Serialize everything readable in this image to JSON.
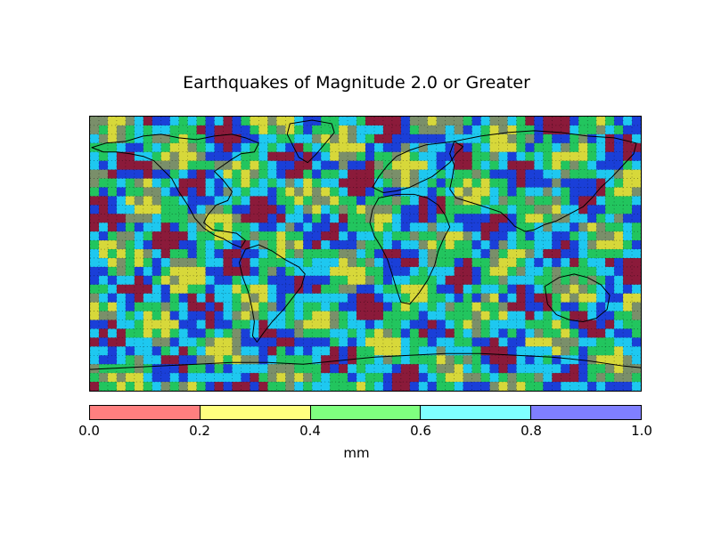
{
  "chart_data": {
    "type": "heatmap",
    "title": "Earthquakes of Magnitude 2.0 or Greater",
    "projection": "cylindrical-equidistant",
    "extent_lon": [
      -180,
      180
    ],
    "extent_lat": [
      -90,
      90
    ],
    "grid": "dotted",
    "colorbar": {
      "label": "mm",
      "orientation": "horizontal",
      "placement": "bottom",
      "range": [
        0,
        1
      ],
      "ticks": [
        "0.0",
        "0.2",
        "0.4",
        "0.6",
        "0.8",
        "1.0"
      ],
      "bins": [
        {
          "min": 0.0,
          "max": 0.2,
          "color": "#ff7f7f"
        },
        {
          "min": 0.2,
          "max": 0.4,
          "color": "#ffff7f"
        },
        {
          "min": 0.4,
          "max": 0.6,
          "color": "#7fff7f"
        },
        {
          "min": 0.6,
          "max": 0.8,
          "color": "#7fffff"
        },
        {
          "min": 0.8,
          "max": 1.0,
          "color": "#7f7fff"
        }
      ]
    },
    "field_colors": [
      "#8b1a3a",
      "#d7d83a",
      "#22c55e",
      "#1ec8f0",
      "#1a3fd8",
      "#7a8f6a"
    ],
    "coastline_color": "#000000"
  }
}
